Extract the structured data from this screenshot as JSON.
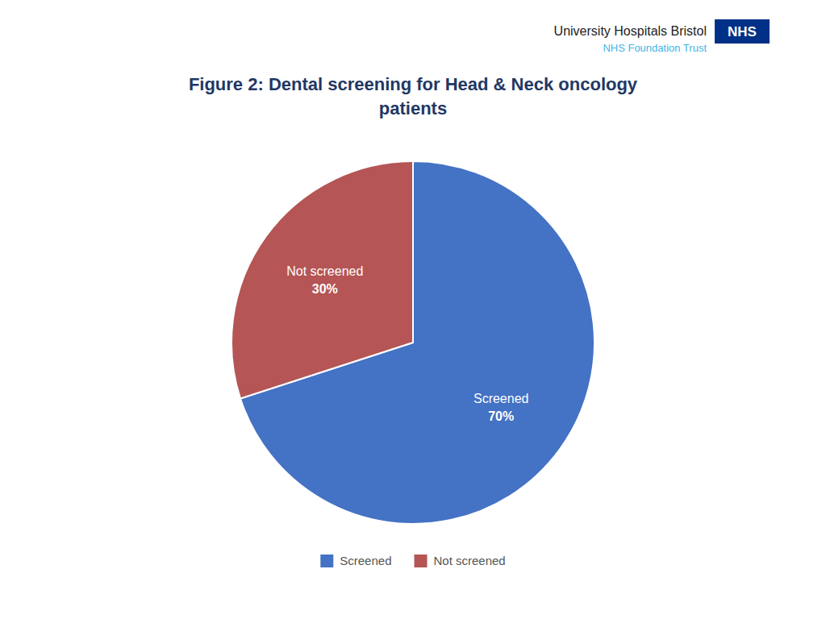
{
  "chart_data": {
    "type": "pie",
    "title": "Figure 2: Dental screening for Head & Neck oncology\npatients",
    "categories": [
      "Screened",
      "Not screened"
    ],
    "values": [
      70,
      30
    ],
    "value_labels": [
      "70%",
      "30%"
    ],
    "colors": [
      "#4472C4",
      "#B55555"
    ],
    "data_labels": true,
    "legend": "bottom",
    "annotations": [
      "University Hospitals Bristol",
      "NHS",
      "NHS Foundation Trust"
    ]
  }
}
